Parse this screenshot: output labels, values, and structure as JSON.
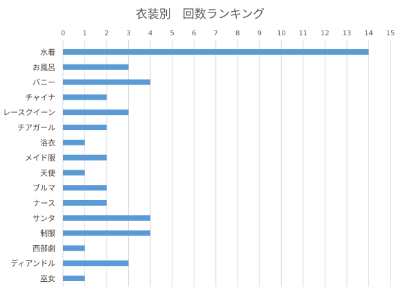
{
  "chart_data": {
    "type": "bar",
    "orientation": "horizontal",
    "title": "衣装別　回数ランキング",
    "categories": [
      "水着",
      "お風呂",
      "バニー",
      "チャイナ",
      "レースクイーン",
      "チアガール",
      "浴衣",
      "メイド服",
      "天使",
      "ブルマ",
      "ナース",
      "サンタ",
      "制服",
      "西部劇",
      "ディアンドル",
      "巫女"
    ],
    "values": [
      14,
      3,
      4,
      2,
      3,
      2,
      1,
      2,
      1,
      2,
      2,
      4,
      4,
      1,
      3,
      1
    ],
    "xlim": [
      0,
      15
    ],
    "xticks": [
      "0",
      "1",
      "2",
      "3",
      "4",
      "5",
      "6",
      "7",
      "8",
      "9",
      "10",
      "11",
      "12",
      "13",
      "14",
      "15"
    ],
    "xaxis_position": "top",
    "grid": true,
    "legend": "none",
    "colors": {
      "bar": "#5b9bd5",
      "grid": "#d9d9d9",
      "text": "#595959"
    }
  }
}
